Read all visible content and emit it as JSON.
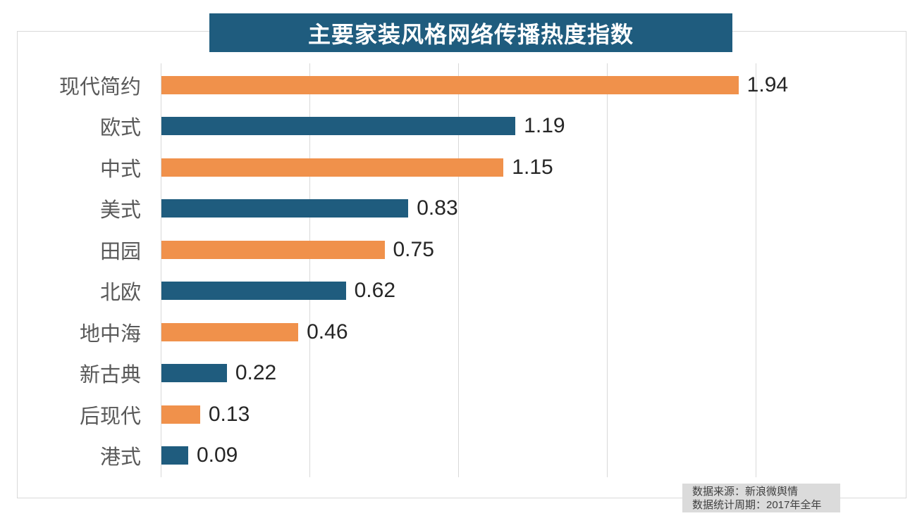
{
  "title": {
    "text": "主要家装风格网络传播热度指数"
  },
  "source_note": {
    "line1": "数据来源：新浪微舆情",
    "line2": "数据统计周期：2017年全年"
  },
  "colors": {
    "orange_bar": "#F0914B",
    "teal_bar": "#1F5C7E",
    "title_bg": "#1F5C7E",
    "title_text": "#FFFFFF",
    "grid": "#D9D9D9",
    "frame_border": "#D9D9D9",
    "category_text": "#595959",
    "value_text": "#262626",
    "source_bg": "#DBDBDB",
    "source_text": "#404040"
  },
  "chart_data": {
    "type": "bar",
    "orientation": "horizontal",
    "title": "主要家装风格网络传播热度指数",
    "xlabel": "",
    "ylabel": "",
    "categories": [
      "现代简约",
      "欧式",
      "中式",
      "美式",
      "田园",
      "北欧",
      "地中海",
      "新古典",
      "后现代",
      "港式"
    ],
    "values": [
      1.94,
      1.19,
      1.15,
      0.83,
      0.75,
      0.62,
      0.46,
      0.22,
      0.13,
      0.09
    ],
    "value_labels": [
      "1.94",
      "1.19",
      "1.15",
      "0.83",
      "0.75",
      "0.62",
      "0.46",
      "0.22",
      "0.13",
      "0.09"
    ],
    "xlim": [
      0,
      2.5
    ],
    "gridlines_x": [
      0,
      0.5,
      1.0,
      1.5,
      2.0
    ],
    "grid": true,
    "legend": "none",
    "bar_colors_alternating": [
      "#F0914B",
      "#1F5C7E"
    ],
    "data_labels": "outside-end",
    "axis_tick_labels": "none"
  }
}
